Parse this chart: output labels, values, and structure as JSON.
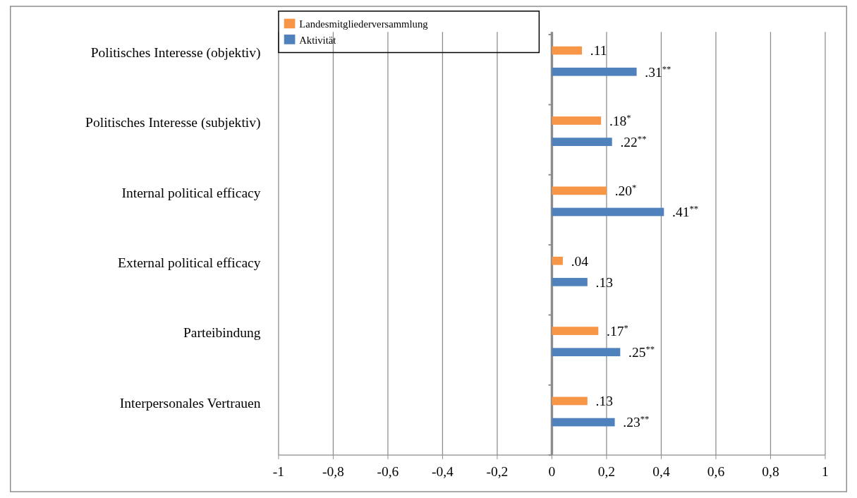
{
  "chart_data": {
    "type": "bar",
    "orientation": "horizontal",
    "categories": [
      "Politisches Interesse (objektiv)",
      "Politisches Interesse (subjektiv)",
      "Internal political efficacy",
      "External political efficacy",
      "Parteibindung",
      "Interpersonales Vertrauen"
    ],
    "series": [
      {
        "name": "Landesmitgliederversammlung",
        "color": "#f79646",
        "values": [
          0.11,
          0.18,
          0.2,
          0.04,
          0.17,
          0.13
        ],
        "value_labels": [
          ".11",
          ".18$^{*}$",
          ".20$^{*}$",
          ".04",
          ".17$^{*}$",
          ".13"
        ]
      },
      {
        "name": "Aktivität",
        "color": "#4f81bd",
        "values": [
          0.31,
          0.22,
          0.41,
          0.13,
          0.25,
          0.23
        ],
        "value_labels": [
          ".31$^{**}$",
          ".22$^{**}$",
          ".41$^{**}$",
          ".13",
          ".25$^{**}$",
          ".23$^{**}$"
        ]
      }
    ],
    "xlim": [
      -1,
      1
    ],
    "xticks": [
      {
        "value": -1,
        "label": "-1"
      },
      {
        "value": -0.8,
        "label": "-0,8"
      },
      {
        "value": -0.6,
        "label": "-0,6"
      },
      {
        "value": -0.4,
        "label": "-0,4"
      },
      {
        "value": -0.2,
        "label": "-0,2"
      },
      {
        "value": 0,
        "label": "0"
      },
      {
        "value": 0.2,
        "label": "0,2"
      },
      {
        "value": 0.4,
        "label": "0,4"
      },
      {
        "value": 0.6,
        "label": "0,6"
      },
      {
        "value": 0.8,
        "label": "0,8"
      },
      {
        "value": 1,
        "label": "1"
      }
    ],
    "grid": "x",
    "legend": "top left"
  }
}
